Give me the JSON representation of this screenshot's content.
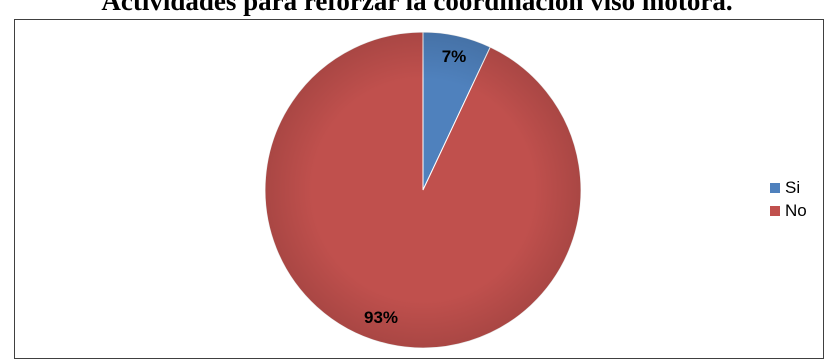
{
  "chart_data": {
    "type": "pie",
    "title": "Actividades para reforzar la coordinación viso motora.",
    "series": [
      {
        "name": "Si",
        "value": 7,
        "label": "7%",
        "color": "#4F81BD"
      },
      {
        "name": "No",
        "value": 93,
        "label": "93%",
        "color": "#C0504D"
      }
    ],
    "legend_position": "right"
  }
}
